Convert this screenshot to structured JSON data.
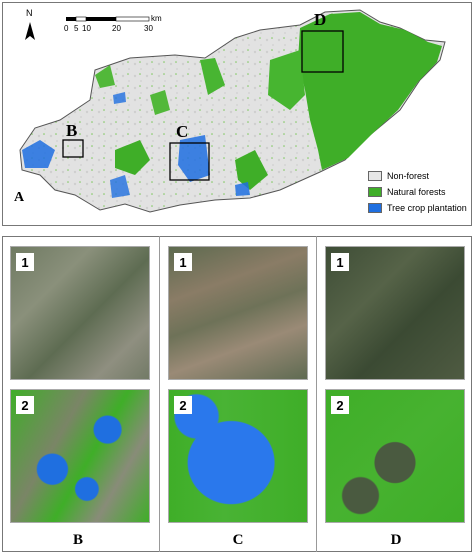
{
  "map": {
    "panel_label": "A",
    "north_label": "N",
    "scale": {
      "ticks": [
        "0",
        "5",
        "10",
        "20",
        "30"
      ],
      "unit": "km"
    },
    "zoom_boxes": [
      "B",
      "C",
      "D"
    ],
    "legend": [
      {
        "label": "Non-forest",
        "color": "#e6e6e6"
      },
      {
        "label": "Natural forests",
        "color": "#3fae28"
      },
      {
        "label": "Tree crop plantation",
        "color": "#1f6fe0"
      }
    ]
  },
  "tiles": {
    "row_labels": [
      "1",
      "2"
    ],
    "columns": [
      "B",
      "C",
      "D"
    ]
  }
}
